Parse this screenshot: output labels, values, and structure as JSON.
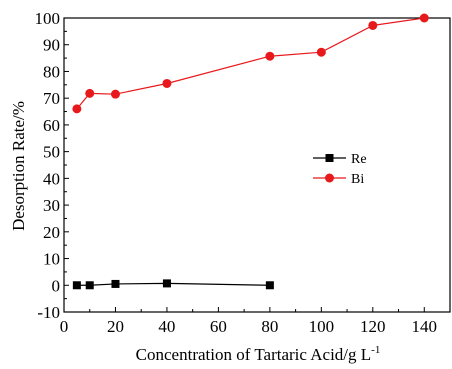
{
  "chart_data": {
    "type": "line",
    "xlabel": "Concentration of Tartaric Acid/g",
    "xlabel_unit": "L",
    "xlabel_exp": "-1",
    "ylabel": "Desorption Rate/%",
    "xlim": [
      0,
      150
    ],
    "ylim": [
      -10,
      100
    ],
    "xticks": [
      0,
      20,
      40,
      60,
      80,
      100,
      120,
      140
    ],
    "yticks": [
      -10,
      0,
      10,
      20,
      30,
      40,
      50,
      60,
      70,
      80,
      90,
      100
    ],
    "grid": false,
    "legend_position": "right-middle",
    "series": [
      {
        "name": "Re",
        "color": "#000000",
        "marker": "square",
        "points": [
          [
            5,
            0
          ],
          [
            10,
            0
          ],
          [
            20,
            0.5
          ],
          [
            40,
            0.7
          ],
          [
            80,
            0
          ]
        ]
      },
      {
        "name": "Bi",
        "color": "#e8191c",
        "marker": "circle",
        "points": [
          [
            5,
            66
          ],
          [
            10,
            71.8
          ],
          [
            20,
            71.5
          ],
          [
            40,
            75.5
          ],
          [
            80,
            85.7
          ],
          [
            100,
            87.2
          ],
          [
            120,
            97.2
          ],
          [
            140,
            100
          ]
        ]
      }
    ]
  }
}
